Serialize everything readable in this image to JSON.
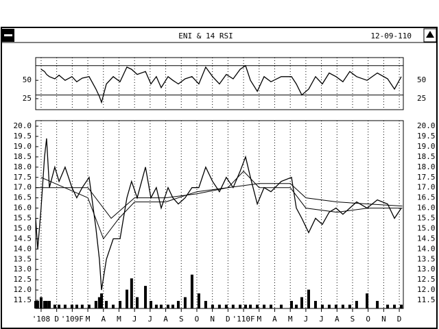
{
  "window": {
    "title": "ENI & 14 RSI",
    "date": "12-09-110"
  },
  "chart_data": [
    {
      "type": "line",
      "x": [
        -0.35,
        -0.22,
        0,
        0.22,
        0.35,
        0.53,
        0.88,
        1.15,
        1.54,
        1.98,
        2.29,
        2.64,
        3.08,
        3.52,
        3.74,
        3.88,
        4.19,
        4.63,
        5.07,
        5.51,
        5.81,
        6.17,
        6.7,
        7.05,
        7.4,
        7.71,
        8.15,
        8.46,
        8.81,
        9.25,
        9.69,
        10.13,
        10.57,
        11.01,
        11.45,
        11.89,
        12.33,
        12.78,
        13.13,
        13.44,
        13.88,
        14.32,
        14.76,
        15.42,
        16.08,
        16.39,
        16.74,
        17.18,
        17.62,
        18.06,
        18.5,
        18.94,
        19.38,
        19.82,
        20.26,
        20.93,
        21.59,
        22.25,
        22.69,
        23.13
      ],
      "series": [
        {
          "color": "#000000",
          "values": [
            null,
            null,
            65,
            62,
            58,
            55,
            52,
            57,
            50,
            55,
            48,
            53,
            55,
            38,
            28,
            20,
            45,
            55,
            48,
            68,
            65,
            58,
            62,
            45,
            55,
            40,
            55,
            50,
            45,
            52,
            55,
            45,
            68,
            55,
            45,
            58,
            52,
            65,
            70,
            50,
            35,
            55,
            48,
            55,
            55,
            45,
            30,
            38,
            55,
            45,
            60,
            55,
            48,
            62,
            55,
            50,
            60,
            52,
            38,
            55
          ]
        }
      ],
      "xlim": [
        -0.35,
        23.26
      ],
      "ylim": [
        10,
        81
      ],
      "yticks": [
        25,
        50
      ],
      "levels": [
        30,
        70
      ]
    },
    {
      "type": "line",
      "x": [
        -0.35,
        -0.22,
        0,
        0.22,
        0.35,
        0.53,
        0.88,
        1.15,
        1.54,
        1.98,
        2.29,
        2.64,
        3.08,
        3.52,
        3.74,
        3.88,
        4.19,
        4.63,
        5.07,
        5.51,
        5.81,
        6.17,
        6.7,
        7.05,
        7.4,
        7.71,
        8.15,
        8.46,
        8.81,
        9.25,
        9.69,
        10.13,
        10.57,
        11.01,
        11.45,
        11.89,
        12.33,
        12.78,
        13.13,
        13.44,
        13.88,
        14.32,
        14.76,
        15.42,
        16.08,
        16.39,
        16.74,
        17.18,
        17.62,
        18.06,
        18.5,
        18.94,
        19.38,
        19.82,
        20.26,
        20.93,
        21.59,
        22.25,
        22.69,
        23.13
      ],
      "series": [
        {
          "color": "#000000",
          "values": [
            15.5,
            14,
            16,
            18.5,
            19.4,
            17,
            18,
            17.3,
            18,
            17,
            16.5,
            17,
            17.5,
            15,
            13.5,
            12,
            13.5,
            14.5,
            14.5,
            16.5,
            17.3,
            16.5,
            18,
            16.5,
            17,
            16,
            17,
            16.5,
            16.2,
            16.5,
            17,
            17,
            18,
            17.3,
            16.8,
            17.5,
            17,
            17.8,
            18.5,
            17.5,
            16.2,
            17,
            16.8,
            17.3,
            17.5,
            16,
            15.5,
            14.8,
            15.5,
            15.2,
            15.8,
            16,
            15.7,
            16,
            16.3,
            16,
            16.4,
            16.2,
            15.5,
            16
          ]
        },
        {
          "color": "#000000",
          "x": [
            -0.35,
            3,
            4.5,
            6,
            8,
            10,
            12,
            14,
            16,
            17,
            19,
            21,
            23.2
          ],
          "values": [
            17,
            17,
            15.5,
            16.5,
            16.5,
            16.7,
            17,
            17.2,
            17.2,
            16.5,
            16.3,
            16.2,
            16.1
          ]
        },
        {
          "color": "#000000",
          "x": [
            0,
            3,
            4,
            5,
            6,
            8,
            10,
            12,
            13,
            14,
            16,
            17,
            19,
            21,
            23.2
          ],
          "values": [
            17.5,
            16.5,
            14.5,
            15.5,
            16.3,
            16.3,
            16.8,
            17,
            17.8,
            17,
            17,
            16,
            15.8,
            16,
            16
          ]
        },
        {
          "type": "bar",
          "axis": "y2",
          "color": "#000000",
          "values": [
            2,
            2,
            3,
            2,
            2,
            2,
            1,
            1,
            1,
            1,
            1,
            1,
            1,
            2,
            3,
            4,
            2,
            1,
            2,
            5,
            8,
            3,
            6,
            2,
            1,
            1,
            1,
            1,
            2,
            3,
            9,
            4,
            2,
            1,
            1,
            1,
            1,
            1,
            1,
            1,
            1,
            1,
            1,
            1,
            2,
            1,
            3,
            5,
            2,
            1,
            1,
            1,
            1,
            1,
            2,
            4,
            2,
            1,
            1,
            1
          ]
        }
      ],
      "xlim": [
        -0.35,
        23.26
      ],
      "ylim": [
        11.1,
        20.27
      ],
      "y2lim": [
        0,
        50
      ],
      "yticks": [
        11.5,
        {
          "value": 12,
          "label": "12.0"
        },
        12.5,
        {
          "value": 13,
          "label": "13.0"
        },
        13.5,
        {
          "value": 14,
          "label": "14.0"
        },
        14.5,
        {
          "value": 15,
          "label": "15.0"
        },
        15.5,
        {
          "value": 16,
          "label": "16.0"
        },
        16.5,
        {
          "value": 17,
          "label": "17.0"
        },
        17.5,
        {
          "value": 18,
          "label": "18.0"
        },
        18.5,
        {
          "value": 19,
          "label": "19.0"
        },
        19.5,
        {
          "value": 20,
          "label": "20.0"
        }
      ],
      "xticks": [
        {
          "value": 0,
          "label": "'108"
        },
        {
          "value": 1,
          "label": "D"
        },
        {
          "value": 2,
          "label": "'109F"
        },
        {
          "value": 3,
          "label": "M"
        },
        {
          "value": 4,
          "label": "A"
        },
        {
          "value": 5,
          "label": "M"
        },
        {
          "value": 6,
          "label": "J"
        },
        {
          "value": 7,
          "label": "J"
        },
        {
          "value": 8,
          "label": "A"
        },
        {
          "value": 9,
          "label": "S"
        },
        {
          "value": 10,
          "label": "O"
        },
        {
          "value": 11,
          "label": "N"
        },
        {
          "value": 12,
          "label": "D"
        },
        {
          "value": 13,
          "label": "'110F"
        },
        {
          "value": 14,
          "label": "M"
        },
        {
          "value": 15,
          "label": "A"
        },
        {
          "value": 16,
          "label": "M"
        },
        {
          "value": 17,
          "label": "J"
        },
        {
          "value": 18,
          "label": "J"
        },
        {
          "value": 19,
          "label": "A"
        },
        {
          "value": 20,
          "label": "S"
        },
        {
          "value": 21,
          "label": "O"
        },
        {
          "value": 22,
          "label": "N"
        },
        {
          "value": 23,
          "label": "D"
        }
      ],
      "grid": true
    }
  ]
}
